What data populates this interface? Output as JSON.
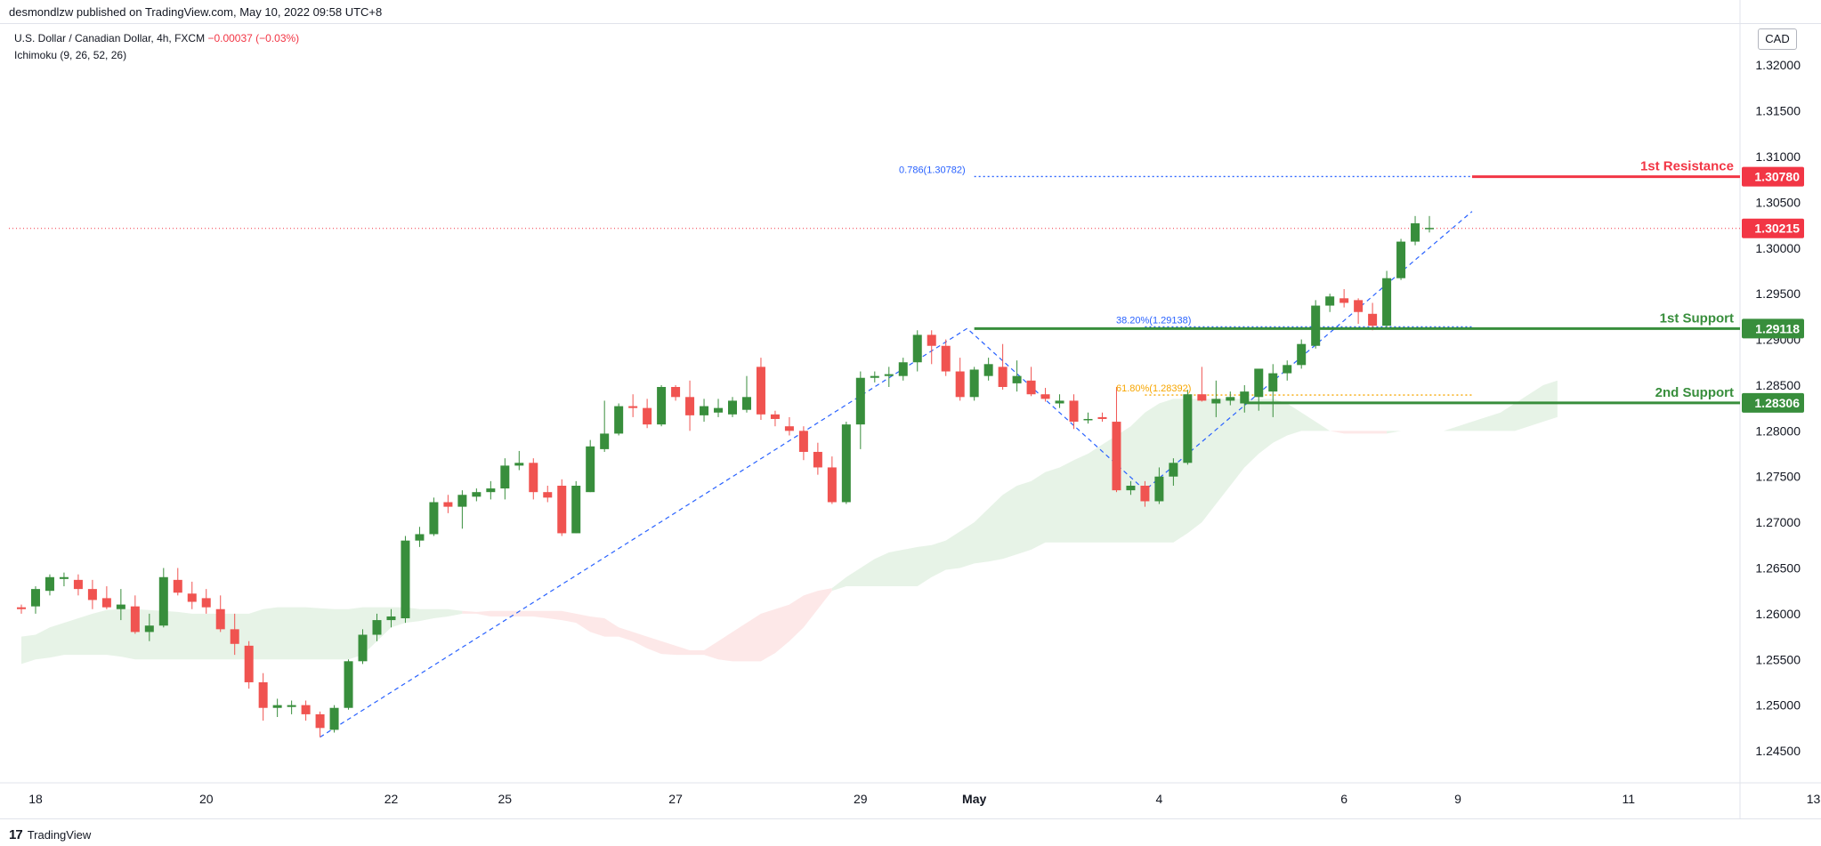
{
  "header": {
    "publisher": "desmondlzw published on TradingView.com, May 10, 2022 09:58 UTC+8"
  },
  "legend": {
    "symbol": "U.S. Dollar / Canadian Dollar, 4h, FXCM",
    "change": "−0.00037 (−0.03%)",
    "indicator": "Ichimoku (9, 26, 52, 26)"
  },
  "currency": "CAD",
  "footer": {
    "brand": "TradingView",
    "logo_icon": "tradingview-logo-icon"
  },
  "colors": {
    "bull": "#388e3c",
    "bear": "#f05350",
    "resistance": "#f23645",
    "support": "#388e3c",
    "fib_blue": "#2962ff",
    "fib_orange": "#f7a600",
    "cloud_bull": "#e3f1e3",
    "cloud_bear": "#fde4e4",
    "last_price": "#f23645"
  },
  "chart_data": {
    "type": "candlestick",
    "ylim": [
      1.2415,
      1.3245
    ],
    "y_ticks": [
      "1.24500",
      "1.25000",
      "1.25500",
      "1.26000",
      "1.26500",
      "1.27000",
      "1.27500",
      "1.28000",
      "1.28500",
      "1.29000",
      "1.29500",
      "1.30000",
      "1.30500",
      "1.31000",
      "1.31500",
      "1.32000"
    ],
    "x_ticks": [
      {
        "label": "18",
        "i": 1
      },
      {
        "label": "20",
        "i": 13
      },
      {
        "label": "22",
        "i": 26
      },
      {
        "label": "25",
        "i": 34
      },
      {
        "label": "27",
        "i": 46
      },
      {
        "label": "29",
        "i": 59
      },
      {
        "label": "May",
        "i": 67,
        "bold": true
      },
      {
        "label": "4",
        "i": 80
      },
      {
        "label": "6",
        "i": 93
      },
      {
        "label": "9",
        "i": 101
      },
      {
        "label": "11",
        "i": 113
      },
      {
        "label": "13",
        "i": 126
      }
    ],
    "candles": [
      [
        1.2607,
        1.261,
        1.26,
        1.2605
      ],
      [
        1.2608,
        1.263,
        1.26,
        1.2627
      ],
      [
        1.2625,
        1.2643,
        1.262,
        1.264
      ],
      [
        1.2638,
        1.2645,
        1.263,
        1.264
      ],
      [
        1.2637,
        1.2643,
        1.262,
        1.2627
      ],
      [
        1.2627,
        1.2637,
        1.2605,
        1.2615
      ],
      [
        1.2617,
        1.263,
        1.2605,
        1.2607
      ],
      [
        1.2605,
        1.2627,
        1.2593,
        1.261
      ],
      [
        1.2608,
        1.262,
        1.2578,
        1.258
      ],
      [
        1.258,
        1.26,
        1.257,
        1.2587
      ],
      [
        1.2587,
        1.265,
        1.2585,
        1.264
      ],
      [
        1.2637,
        1.265,
        1.262,
        1.2623
      ],
      [
        1.2622,
        1.2635,
        1.2605,
        1.2613
      ],
      [
        1.2617,
        1.2627,
        1.26,
        1.2607
      ],
      [
        1.2605,
        1.262,
        1.258,
        1.2583
      ],
      [
        1.2583,
        1.26,
        1.2555,
        1.2567
      ],
      [
        1.2565,
        1.257,
        1.2518,
        1.2525
      ],
      [
        1.2525,
        1.2535,
        1.2483,
        1.2497
      ],
      [
        1.2497,
        1.2507,
        1.2487,
        1.25
      ],
      [
        1.2498,
        1.2505,
        1.249,
        1.25
      ],
      [
        1.25,
        1.2505,
        1.2483,
        1.249
      ],
      [
        1.249,
        1.2493,
        1.2465,
        1.2475
      ],
      [
        1.2473,
        1.25,
        1.247,
        1.2497
      ],
      [
        1.2497,
        1.255,
        1.2495,
        1.2548
      ],
      [
        1.2548,
        1.2583,
        1.2545,
        1.2577
      ],
      [
        1.2577,
        1.26,
        1.257,
        1.2593
      ],
      [
        1.2593,
        1.2605,
        1.2585,
        1.2597
      ],
      [
        1.2595,
        1.2685,
        1.259,
        1.268
      ],
      [
        1.268,
        1.2695,
        1.2673,
        1.2687
      ],
      [
        1.2687,
        1.2727,
        1.2685,
        1.2722
      ],
      [
        1.2722,
        1.273,
        1.271,
        1.2717
      ],
      [
        1.2717,
        1.2735,
        1.2693,
        1.273
      ],
      [
        1.2728,
        1.2737,
        1.2723,
        1.2733
      ],
      [
        1.2733,
        1.2745,
        1.2725,
        1.2737
      ],
      [
        1.2737,
        1.277,
        1.2725,
        1.2762
      ],
      [
        1.2762,
        1.2778,
        1.2757,
        1.2765
      ],
      [
        1.2765,
        1.277,
        1.2725,
        1.2733
      ],
      [
        1.2733,
        1.274,
        1.2722,
        1.2727
      ],
      [
        1.274,
        1.2747,
        1.2685,
        1.2688
      ],
      [
        1.2688,
        1.2745,
        1.2688,
        1.274
      ],
      [
        1.2733,
        1.279,
        1.2733,
        1.2783
      ],
      [
        1.278,
        1.2833,
        1.2777,
        1.2797
      ],
      [
        1.2797,
        1.283,
        1.2795,
        1.2827
      ],
      [
        1.2827,
        1.284,
        1.2815,
        1.2825
      ],
      [
        1.2825,
        1.2835,
        1.2803,
        1.2807
      ],
      [
        1.2807,
        1.285,
        1.2805,
        1.2848
      ],
      [
        1.2848,
        1.285,
        1.2833,
        1.2837
      ],
      [
        1.2837,
        1.2855,
        1.28,
        1.2817
      ],
      [
        1.2817,
        1.2835,
        1.281,
        1.2827
      ],
      [
        1.282,
        1.2835,
        1.2815,
        1.2825
      ],
      [
        1.2818,
        1.2837,
        1.2815,
        1.2833
      ],
      [
        1.2823,
        1.286,
        1.282,
        1.2837
      ],
      [
        1.287,
        1.288,
        1.2812,
        1.2818
      ],
      [
        1.2818,
        1.2822,
        1.2805,
        1.2813
      ],
      [
        1.2805,
        1.2815,
        1.2795,
        1.28
      ],
      [
        1.28,
        1.2805,
        1.2768,
        1.2777
      ],
      [
        1.2777,
        1.2787,
        1.2752,
        1.276
      ],
      [
        1.276,
        1.2772,
        1.272,
        1.2722
      ],
      [
        1.2722,
        1.281,
        1.272,
        1.2807
      ],
      [
        1.2807,
        1.2865,
        1.278,
        1.2858
      ],
      [
        1.2858,
        1.2865,
        1.2853,
        1.286
      ],
      [
        1.286,
        1.287,
        1.2848,
        1.2862
      ],
      [
        1.286,
        1.288,
        1.2855,
        1.2875
      ],
      [
        1.2875,
        1.291,
        1.2865,
        1.2905
      ],
      [
        1.2905,
        1.291,
        1.2873,
        1.2893
      ],
      [
        1.2893,
        1.29,
        1.286,
        1.2865
      ],
      [
        1.2865,
        1.288,
        1.2833,
        1.2837
      ],
      [
        1.2837,
        1.287,
        1.2833,
        1.2867
      ],
      [
        1.286,
        1.288,
        1.2855,
        1.2873
      ],
      [
        1.287,
        1.2895,
        1.2845,
        1.2848
      ],
      [
        1.2852,
        1.2877,
        1.2843,
        1.286
      ],
      [
        1.2855,
        1.287,
        1.2838,
        1.284
      ],
      [
        1.284,
        1.2847,
        1.2832,
        1.2835
      ],
      [
        1.283,
        1.284,
        1.2825,
        1.2833
      ],
      [
        1.2833,
        1.284,
        1.2802,
        1.281
      ],
      [
        1.2813,
        1.282,
        1.2808,
        1.2813
      ],
      [
        1.2815,
        1.282,
        1.281,
        1.2813
      ],
      [
        1.281,
        1.2848,
        1.2733,
        1.2735
      ],
      [
        1.2735,
        1.2745,
        1.273,
        1.274
      ],
      [
        1.274,
        1.2745,
        1.2717,
        1.2723
      ],
      [
        1.2723,
        1.276,
        1.272,
        1.275
      ],
      [
        1.275,
        1.277,
        1.274,
        1.2765
      ],
      [
        1.2765,
        1.2845,
        1.2763,
        1.284
      ],
      [
        1.284,
        1.287,
        1.2832,
        1.2833
      ],
      [
        1.283,
        1.2855,
        1.2815,
        1.2835
      ],
      [
        1.2833,
        1.2843,
        1.2828,
        1.2837
      ],
      [
        1.283,
        1.285,
        1.282,
        1.2843
      ],
      [
        1.2837,
        1.286,
        1.2822,
        1.2868
      ],
      [
        1.2843,
        1.2873,
        1.2815,
        1.2863
      ],
      [
        1.2863,
        1.2877,
        1.2855,
        1.2872
      ],
      [
        1.2872,
        1.29,
        1.2868,
        1.2895
      ],
      [
        1.2893,
        1.2943,
        1.289,
        1.2937
      ],
      [
        1.2937,
        1.295,
        1.293,
        1.2947
      ],
      [
        1.2945,
        1.2955,
        1.2935,
        1.294
      ],
      [
        1.2943,
        1.2945,
        1.2917,
        1.293
      ],
      [
        1.2928,
        1.294,
        1.291,
        1.2915
      ],
      [
        1.2915,
        1.2975,
        1.2913,
        1.2967
      ],
      [
        1.2967,
        1.301,
        1.2965,
        1.3007
      ],
      [
        1.3007,
        1.3035,
        1.3003,
        1.3027
      ],
      [
        1.3022,
        1.3035,
        1.3017,
        1.3022
      ]
    ],
    "cloud": {
      "start_index": 0,
      "span_a": [
        1.2575,
        1.2577,
        1.2585,
        1.259,
        1.2595,
        1.26,
        1.2604,
        1.2605,
        1.2605,
        1.2604,
        1.2603,
        1.2602,
        1.26,
        1.26,
        1.26,
        1.26,
        1.26,
        1.2605,
        1.2607,
        1.2607,
        1.2607,
        1.2606,
        1.2605,
        1.2605,
        1.2607,
        1.2607,
        1.2607,
        1.2607,
        1.2605,
        1.2605,
        1.2605,
        1.2603,
        1.26,
        1.2597,
        1.2597,
        1.2597,
        1.2597,
        1.2595,
        1.2593,
        1.259,
        1.258,
        1.2575,
        1.2575,
        1.257,
        1.2562,
        1.2556,
        1.2555,
        1.2555,
        1.2555,
        1.255,
        1.2548,
        1.2548,
        1.2548,
        1.2557,
        1.257,
        1.2585,
        1.2605,
        1.2625,
        1.264,
        1.265,
        1.266,
        1.2667,
        1.267,
        1.2673,
        1.2675,
        1.268,
        1.269,
        1.27,
        1.2715,
        1.273,
        1.274,
        1.2745,
        1.2755,
        1.276,
        1.2768,
        1.2775,
        1.2785,
        1.2795,
        1.2805,
        1.282,
        1.283,
        1.2835,
        1.2835,
        1.2835,
        1.2835,
        1.2835,
        1.2835,
        1.2835,
        1.2835,
        1.283,
        1.282,
        1.281,
        1.28,
        1.2797,
        1.2797,
        1.2797,
        1.2797,
        1.28,
        1.28,
        1.28,
        1.28,
        1.2805,
        1.281,
        1.2815,
        1.282,
        1.283,
        1.284,
        1.285,
        1.2855
      ],
      "span_b": [
        1.2545,
        1.255,
        1.2552,
        1.2555,
        1.2555,
        1.2555,
        1.2555,
        1.2553,
        1.255,
        1.255,
        1.255,
        1.255,
        1.255,
        1.255,
        1.255,
        1.255,
        1.255,
        1.255,
        1.255,
        1.255,
        1.255,
        1.255,
        1.255,
        1.255,
        1.2555,
        1.257,
        1.2585,
        1.259,
        1.2592,
        1.2595,
        1.2597,
        1.26,
        1.2602,
        1.2603,
        1.2603,
        1.2603,
        1.2603,
        1.2603,
        1.2603,
        1.26,
        1.2597,
        1.2595,
        1.2585,
        1.258,
        1.2575,
        1.257,
        1.2565,
        1.256,
        1.256,
        1.257,
        1.258,
        1.259,
        1.26,
        1.2605,
        1.261,
        1.262,
        1.2625,
        1.2628,
        1.263,
        1.263,
        1.263,
        1.263,
        1.263,
        1.263,
        1.264,
        1.2648,
        1.265,
        1.2655,
        1.2657,
        1.266,
        1.2665,
        1.267,
        1.2678,
        1.2678,
        1.2678,
        1.2678,
        1.2678,
        1.2678,
        1.2678,
        1.2678,
        1.2678,
        1.2678,
        1.2688,
        1.27,
        1.272,
        1.274,
        1.276,
        1.2775,
        1.2787,
        1.2795,
        1.28,
        1.28,
        1.28,
        1.28,
        1.28,
        1.28,
        1.28,
        1.28,
        1.28,
        1.28,
        1.28,
        1.28,
        1.28,
        1.28,
        1.28,
        1.28,
        1.2805,
        1.281,
        1.2815
      ]
    },
    "zigzag": [
      [
        21,
        1.2465
      ],
      [
        66.5,
        1.2912
      ],
      [
        79,
        1.2735
      ],
      [
        102,
        1.304
      ]
    ],
    "levels": [
      {
        "name": "1st Resistance",
        "value": "1.30780",
        "price": 1.3078,
        "role": "resistance",
        "from_index": 102
      },
      {
        "name": "1st Support",
        "value": "1.29118",
        "price": 1.29118,
        "role": "support",
        "from_index": 67
      },
      {
        "name": "2nd Support",
        "value": "1.28306",
        "price": 1.28306,
        "role": "support",
        "from_index": 86
      }
    ],
    "fib_levels": [
      {
        "label": "0.786(1.30782)",
        "price": 1.30782,
        "color": "blue",
        "from_index": 67,
        "to_index": 102
      },
      {
        "label": "38.20%(1.29138)",
        "price": 1.29138,
        "color": "blue",
        "from_index": 79,
        "to_index": 102
      },
      {
        "label": "61.80%(1.28392)",
        "price": 1.28392,
        "color": "orange",
        "from_index": 79,
        "to_index": 102
      }
    ],
    "last_price": {
      "value": "1.30215",
      "price": 1.30215
    }
  }
}
